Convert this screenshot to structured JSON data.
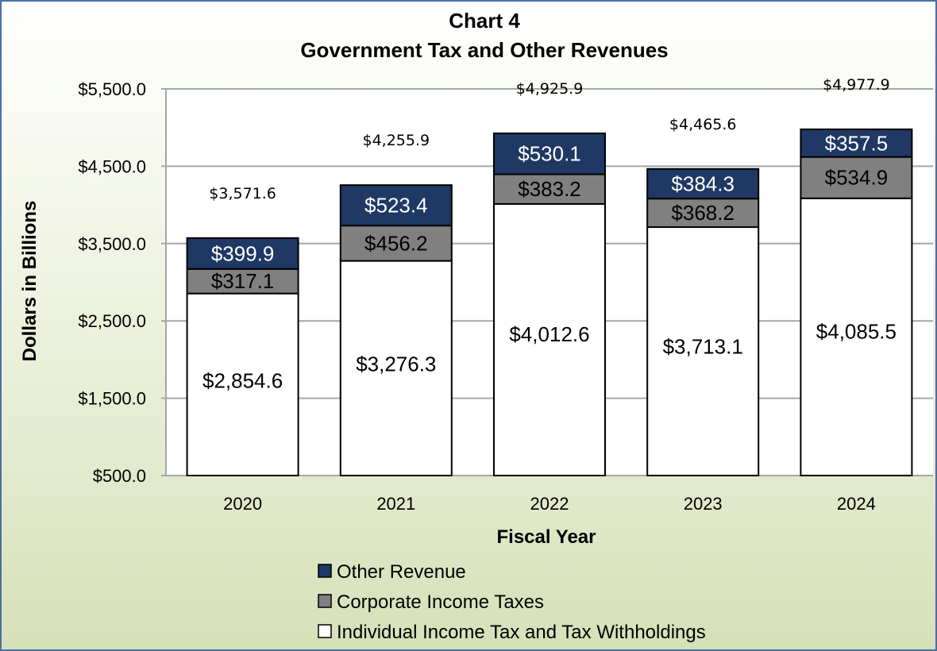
{
  "chart_data": {
    "type": "bar",
    "stacked": true,
    "title": "Chart 4",
    "subtitle": "Government Tax and Other Revenues",
    "xlabel": "Fiscal Year",
    "ylabel": "Dollars in Billions",
    "categories": [
      "2020",
      "2021",
      "2022",
      "2023",
      "2024"
    ],
    "ylim": [
      500,
      5500
    ],
    "yticks": [
      500,
      1500,
      2500,
      3500,
      4500,
      5500
    ],
    "ytick_labels": [
      "$500.0",
      "$1,500.0",
      "$2,500.0",
      "$3,500.0",
      "$4,500.0",
      "$5,500.0"
    ],
    "grid": true,
    "legend_position": "bottom",
    "series": [
      {
        "name": "Individual Income Tax and Tax Withholdings",
        "values": [
          2854.6,
          3276.3,
          4012.6,
          3713.1,
          4085.5
        ],
        "labels": [
          "$2,854.6",
          "$3,276.3",
          "$4,012.6",
          "$3,713.1",
          "$4,085.5"
        ],
        "color": "#ffffff",
        "label_color": "#000000"
      },
      {
        "name": "Corporate Income Taxes",
        "values": [
          317.1,
          456.2,
          383.2,
          368.2,
          534.9
        ],
        "labels": [
          "$317.1",
          "$456.2",
          "$383.2",
          "$368.2",
          "$534.9"
        ],
        "color": "#808080",
        "label_color": "#000000"
      },
      {
        "name": "Other Revenue",
        "values": [
          399.9,
          523.4,
          530.1,
          384.3,
          357.5
        ],
        "labels": [
          "$399.9",
          "$523.4",
          "$530.1",
          "$384.3",
          "$357.5"
        ],
        "color": "#1f3864",
        "label_color": "#ffffff"
      }
    ],
    "totals": [
      3571.6,
      4255.9,
      4925.9,
      4465.6,
      4977.9
    ],
    "total_labels": [
      "$3,571.6",
      "$4,255.9",
      "$4,925.9",
      "$4,465.6",
      "$4,977.9"
    ],
    "legend_order": [
      "Other Revenue",
      "Corporate Income Taxes",
      "Individual Income Tax and Tax Withholdings"
    ]
  }
}
